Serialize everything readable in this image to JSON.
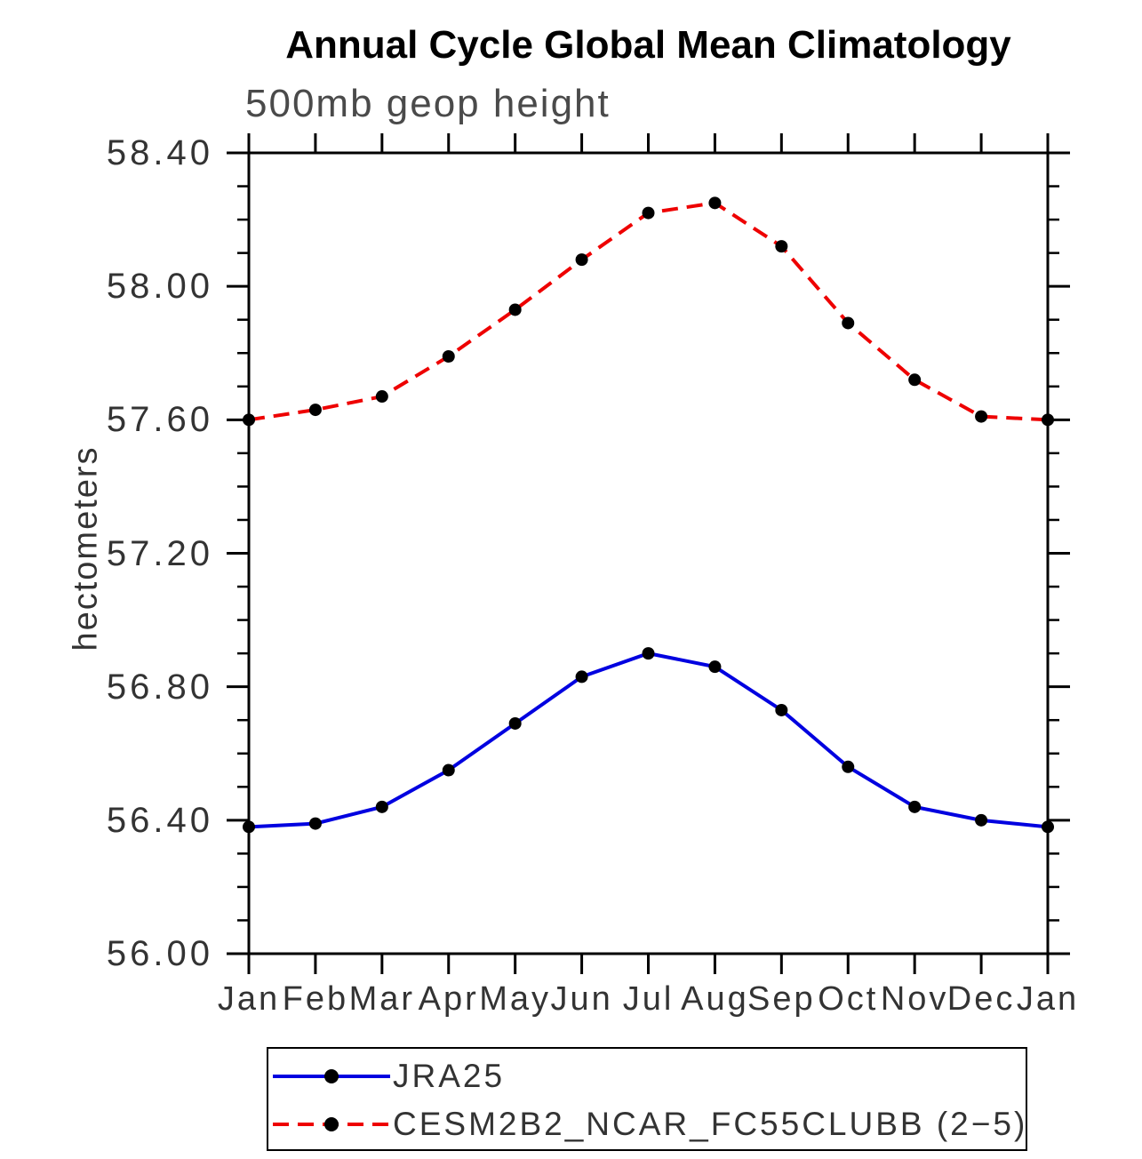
{
  "chart_data": {
    "type": "line",
    "title": "Annual Cycle Global Mean Climatology",
    "subtitle": "500mb geop height",
    "ylabel": "hectometers",
    "x_categories": [
      "Jan",
      "Feb",
      "Mar",
      "Apr",
      "May",
      "Jun",
      "Jul",
      "Aug",
      "Sep",
      "Oct",
      "Nov",
      "Dec",
      "Jan"
    ],
    "ylim": [
      56.0,
      58.4
    ],
    "ytick_labels": [
      "58.40",
      "58.00",
      "57.60",
      "57.20",
      "56.80",
      "56.40",
      "56.00"
    ],
    "ytick_minor_interval": 0.1,
    "grid": false,
    "legend_position": "bottom-left-box",
    "axis_color": "#000000",
    "marker": {
      "shape": "circle",
      "color": "#000000"
    },
    "series": [
      {
        "name": "JRA25",
        "color": "#0000e0",
        "line_style": "solid",
        "values": [
          56.38,
          56.39,
          56.44,
          56.55,
          56.69,
          56.83,
          56.9,
          56.86,
          56.73,
          56.56,
          56.44,
          56.4,
          56.38
        ]
      },
      {
        "name": "CESM2B2_NCAR_FC55CLUBB (2−5)",
        "color": "#ee0000",
        "line_style": "dashed",
        "values": [
          57.6,
          57.63,
          57.67,
          57.79,
          57.93,
          58.08,
          58.22,
          58.25,
          58.12,
          57.89,
          57.72,
          57.61,
          57.6
        ]
      }
    ]
  }
}
